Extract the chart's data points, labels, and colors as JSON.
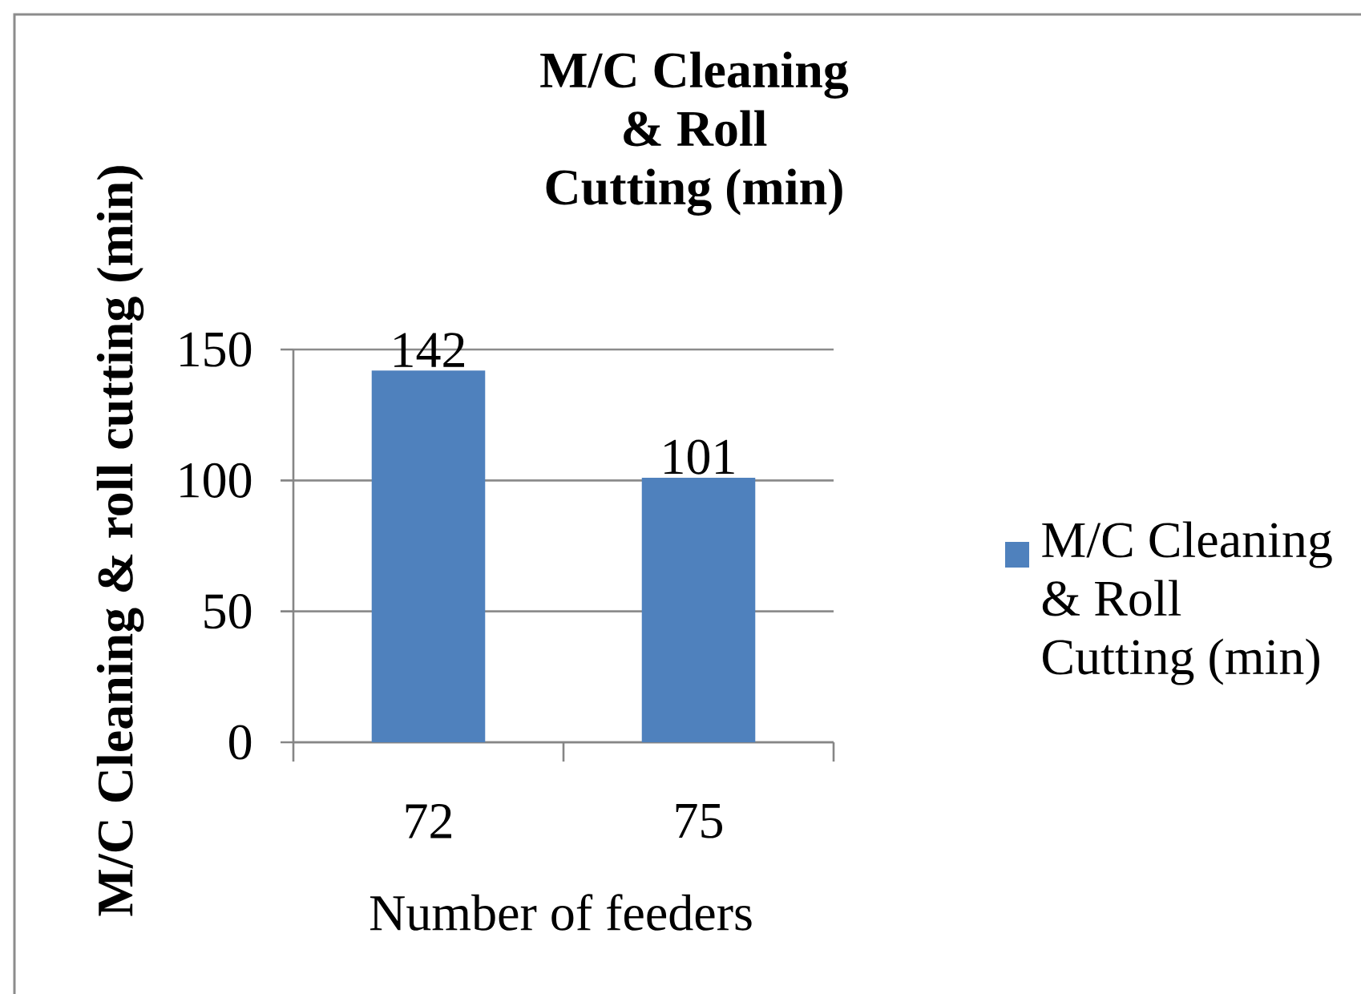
{
  "chart_data": {
    "type": "bar",
    "title": "M/C Cleaning\n& Roll\nCutting (min)",
    "xlabel": "Number of feeders",
    "ylabel": "M/C Cleaning & roll cutting (min)",
    "categories": [
      "72",
      "75"
    ],
    "series": [
      {
        "name": "M/C Cleaning\n& Roll\nCutting (min)",
        "color": "#4f81bd",
        "values": [
          142,
          101
        ]
      }
    ],
    "ylim": [
      0,
      150
    ],
    "yticks": [
      0,
      50,
      100,
      150
    ],
    "grid": "y",
    "legend": "right",
    "data_labels": true
  }
}
